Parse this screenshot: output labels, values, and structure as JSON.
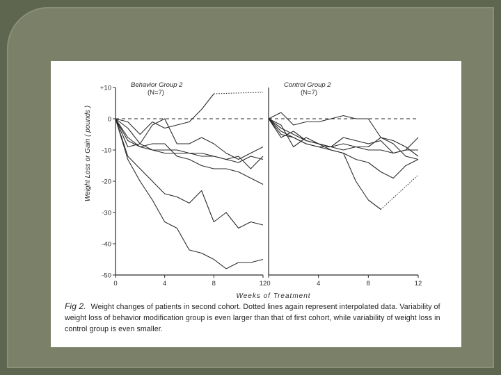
{
  "slide": {
    "caption_prefix": "Fig 2.",
    "caption": "Weight changes of patients in second cohort. Dotted lines again represent interpolated data. Variability of weight loss of behavior modification group is even larger than that of first cohort, while variability of weight loss in control group is even smaller."
  },
  "chart_data": {
    "type": "line",
    "ylabel": "Weight Loss or Gain ( pounds )",
    "xlabel": "Weeks of Treatment",
    "ylim": [
      -50,
      10
    ],
    "yticks": [
      10,
      0,
      -10,
      -20,
      -30,
      -40,
      -50
    ],
    "ytick_labels": [
      "+10",
      "0",
      "-10",
      "-20",
      "-30",
      "-40",
      "-50"
    ],
    "xlim": [
      0,
      12
    ],
    "xticks": [
      0,
      4,
      8,
      12
    ],
    "xtick_labels": [
      "0",
      "4",
      "8",
      "12"
    ],
    "grid": false,
    "panels": [
      {
        "title": "Behavior Group 2",
        "subtitle": "(N=7)",
        "series": [
          {
            "values": [
              [
                0,
                0
              ],
              [
                1,
                -1
              ],
              [
                2,
                -5
              ],
              [
                3,
                -1
              ],
              [
                4,
                -3
              ],
              [
                5,
                -2
              ],
              [
                6,
                -1
              ],
              [
                7,
                3
              ],
              [
                8,
                8
              ]
            ]
          },
          {
            "values": [
              [
                8,
                8
              ],
              [
                12,
                8.5
              ]
            ],
            "dotted": true
          },
          {
            "values": [
              [
                0,
                0
              ],
              [
                1,
                -3
              ],
              [
                2,
                -8
              ],
              [
                3,
                -2
              ],
              [
                4,
                0
              ],
              [
                5,
                -8
              ],
              [
                6,
                -8
              ],
              [
                7,
                -6
              ],
              [
                8,
                -8
              ],
              [
                9,
                -11
              ],
              [
                10,
                -13
              ],
              [
                11,
                -11
              ],
              [
                12,
                -9
              ]
            ]
          },
          {
            "values": [
              [
                0,
                0
              ],
              [
                1,
                -6
              ],
              [
                2,
                -9
              ],
              [
                3,
                -8
              ],
              [
                4,
                -8
              ],
              [
                5,
                -12
              ],
              [
                6,
                -13
              ],
              [
                7,
                -15
              ],
              [
                8,
                -16
              ],
              [
                9,
                -16
              ],
              [
                10,
                -17
              ],
              [
                11,
                -19
              ],
              [
                12,
                -21
              ]
            ]
          },
          {
            "values": [
              [
                0,
                0
              ],
              [
                1,
                -7
              ],
              [
                2,
                -9
              ],
              [
                3,
                -10
              ],
              [
                4,
                -10
              ],
              [
                5,
                -10
              ],
              [
                6,
                -11
              ],
              [
                7,
                -12
              ],
              [
                8,
                -12
              ],
              [
                9,
                -13
              ],
              [
                10,
                -12
              ],
              [
                11,
                -16
              ],
              [
                12,
                -12
              ]
            ]
          },
          {
            "values": [
              [
                0,
                0
              ],
              [
                1,
                -9
              ],
              [
                2,
                -8
              ],
              [
                3,
                -10
              ],
              [
                4,
                -11
              ],
              [
                5,
                -11
              ],
              [
                6,
                -11
              ],
              [
                7,
                -11
              ],
              [
                8,
                -12
              ],
              [
                9,
                -13
              ],
              [
                10,
                -14
              ],
              [
                11,
                -12
              ],
              [
                12,
                -13
              ]
            ]
          },
          {
            "values": [
              [
                0,
                0
              ],
              [
                1,
                -12
              ],
              [
                2,
                -16
              ],
              [
                3,
                -20
              ],
              [
                4,
                -24
              ],
              [
                5,
                -25
              ],
              [
                6,
                -27
              ],
              [
                7,
                -23
              ],
              [
                8,
                -33
              ],
              [
                9,
                -30
              ],
              [
                10,
                -35
              ],
              [
                11,
                -33
              ],
              [
                12,
                -34
              ]
            ]
          },
          {
            "values": [
              [
                0,
                0
              ],
              [
                1,
                -13
              ],
              [
                2,
                -20
              ],
              [
                3,
                -26
              ],
              [
                4,
                -33
              ],
              [
                5,
                -35
              ],
              [
                6,
                -42
              ],
              [
                7,
                -43
              ],
              [
                8,
                -45
              ],
              [
                9,
                -48
              ],
              [
                10,
                -46
              ],
              [
                11,
                -46
              ],
              [
                12,
                -45
              ]
            ]
          }
        ]
      },
      {
        "title": "Control Group 2",
        "subtitle": "(N=7)",
        "series": [
          {
            "values": [
              [
                0,
                0
              ],
              [
                1,
                2
              ],
              [
                2,
                -2
              ],
              [
                3,
                -1
              ],
              [
                4,
                -1
              ],
              [
                5,
                0
              ],
              [
                6,
                1
              ],
              [
                7,
                0
              ],
              [
                8,
                0
              ],
              [
                9,
                -6
              ],
              [
                10,
                -8
              ],
              [
                11,
                -12
              ],
              [
                12,
                -13
              ]
            ]
          },
          {
            "values": [
              [
                0,
                0
              ],
              [
                1,
                -6
              ],
              [
                2,
                -4
              ],
              [
                3,
                -7
              ],
              [
                4,
                -8
              ],
              [
                5,
                -9
              ],
              [
                6,
                -6
              ],
              [
                7,
                -7
              ],
              [
                8,
                -8
              ],
              [
                9,
                -7
              ],
              [
                10,
                -11
              ],
              [
                11,
                -10
              ],
              [
                12,
                -6
              ]
            ]
          },
          {
            "values": [
              [
                0,
                0
              ],
              [
                1,
                -2
              ],
              [
                2,
                -9
              ],
              [
                3,
                -6
              ],
              [
                4,
                -8
              ],
              [
                5,
                -9
              ],
              [
                6,
                -10
              ],
              [
                7,
                -9
              ],
              [
                8,
                -9
              ],
              [
                9,
                -6
              ],
              [
                10,
                -7
              ],
              [
                11,
                -9
              ],
              [
                12,
                -12
              ]
            ]
          },
          {
            "values": [
              [
                0,
                0
              ],
              [
                1,
                -3
              ],
              [
                2,
                -5
              ],
              [
                3,
                -7
              ],
              [
                4,
                -8
              ],
              [
                5,
                -10
              ],
              [
                6,
                -11
              ],
              [
                7,
                -13
              ],
              [
                8,
                -14
              ],
              [
                9,
                -17
              ],
              [
                10,
                -19
              ],
              [
                11,
                -15
              ],
              [
                12,
                -13
              ]
            ]
          },
          {
            "values": [
              [
                0,
                0
              ],
              [
                1,
                -4
              ],
              [
                2,
                -6
              ],
              [
                3,
                -8
              ],
              [
                4,
                -9
              ],
              [
                5,
                -9
              ],
              [
                6,
                -8
              ],
              [
                7,
                -9
              ],
              [
                8,
                -10
              ],
              [
                9,
                -10
              ],
              [
                10,
                -11
              ],
              [
                11,
                -10
              ],
              [
                12,
                -10
              ]
            ]
          },
          {
            "values": [
              [
                0,
                0
              ],
              [
                1,
                -5
              ],
              [
                2,
                -6
              ],
              [
                3,
                -8
              ],
              [
                4,
                -9
              ],
              [
                5,
                -10
              ],
              [
                6,
                -11
              ],
              [
                7,
                -20
              ],
              [
                8,
                -26
              ],
              [
                9,
                -29
              ]
            ]
          },
          {
            "values": [
              [
                9,
                -29
              ],
              [
                12,
                -18
              ]
            ],
            "dotted": true
          }
        ]
      }
    ]
  }
}
